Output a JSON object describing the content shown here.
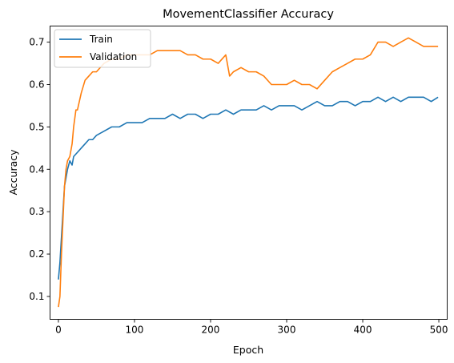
{
  "chart_data": {
    "type": "line",
    "title": "MovementClassifier Accuracy",
    "xlabel": "Epoch",
    "ylabel": "Accuracy",
    "xlim": [
      -11,
      511
    ],
    "ylim": [
      0.046,
      0.738
    ],
    "xticks": [
      0,
      100,
      200,
      300,
      400,
      500
    ],
    "yticks": [
      0.1,
      0.2,
      0.3,
      0.4,
      0.5,
      0.6,
      0.7
    ],
    "grid": false,
    "legend_placement": "upper-left",
    "series": [
      {
        "name": "Train",
        "color": "#1f77b4",
        "x": [
          0,
          2,
          4,
          6,
          8,
          10,
          12,
          15,
          18,
          20,
          25,
          30,
          35,
          40,
          45,
          50,
          60,
          70,
          80,
          90,
          100,
          110,
          120,
          130,
          140,
          150,
          160,
          170,
          180,
          190,
          200,
          210,
          220,
          230,
          240,
          250,
          260,
          270,
          280,
          290,
          300,
          310,
          320,
          330,
          340,
          350,
          360,
          370,
          380,
          390,
          400,
          410,
          420,
          430,
          440,
          450,
          460,
          470,
          480,
          490,
          499
        ],
        "y": [
          0.14,
          0.18,
          0.24,
          0.3,
          0.36,
          0.38,
          0.4,
          0.42,
          0.41,
          0.43,
          0.44,
          0.45,
          0.46,
          0.47,
          0.47,
          0.48,
          0.49,
          0.5,
          0.5,
          0.51,
          0.51,
          0.51,
          0.52,
          0.52,
          0.52,
          0.53,
          0.52,
          0.53,
          0.53,
          0.52,
          0.53,
          0.53,
          0.54,
          0.53,
          0.54,
          0.54,
          0.54,
          0.55,
          0.54,
          0.55,
          0.55,
          0.55,
          0.54,
          0.55,
          0.56,
          0.55,
          0.55,
          0.56,
          0.56,
          0.55,
          0.56,
          0.56,
          0.57,
          0.56,
          0.57,
          0.56,
          0.57,
          0.57,
          0.57,
          0.56,
          0.57
        ]
      },
      {
        "name": "Validation",
        "color": "#ff7f0e",
        "x": [
          0,
          2,
          4,
          6,
          8,
          10,
          12,
          15,
          18,
          20,
          23,
          25,
          30,
          35,
          40,
          45,
          50,
          60,
          70,
          80,
          90,
          100,
          110,
          120,
          130,
          140,
          150,
          160,
          170,
          180,
          190,
          200,
          210,
          220,
          225,
          230,
          240,
          250,
          260,
          270,
          280,
          290,
          300,
          310,
          320,
          330,
          340,
          350,
          360,
          370,
          380,
          390,
          400,
          410,
          420,
          430,
          440,
          450,
          460,
          470,
          480,
          490,
          499
        ],
        "y": [
          0.075,
          0.1,
          0.2,
          0.28,
          0.36,
          0.4,
          0.42,
          0.43,
          0.46,
          0.5,
          0.54,
          0.54,
          0.58,
          0.61,
          0.62,
          0.63,
          0.63,
          0.65,
          0.66,
          0.66,
          0.67,
          0.67,
          0.67,
          0.67,
          0.68,
          0.68,
          0.68,
          0.68,
          0.67,
          0.67,
          0.66,
          0.66,
          0.65,
          0.67,
          0.62,
          0.63,
          0.64,
          0.63,
          0.63,
          0.62,
          0.6,
          0.6,
          0.6,
          0.61,
          0.6,
          0.6,
          0.59,
          0.61,
          0.63,
          0.64,
          0.65,
          0.66,
          0.66,
          0.67,
          0.7,
          0.7,
          0.69,
          0.7,
          0.71,
          0.7,
          0.69,
          0.69,
          0.69
        ]
      }
    ]
  }
}
